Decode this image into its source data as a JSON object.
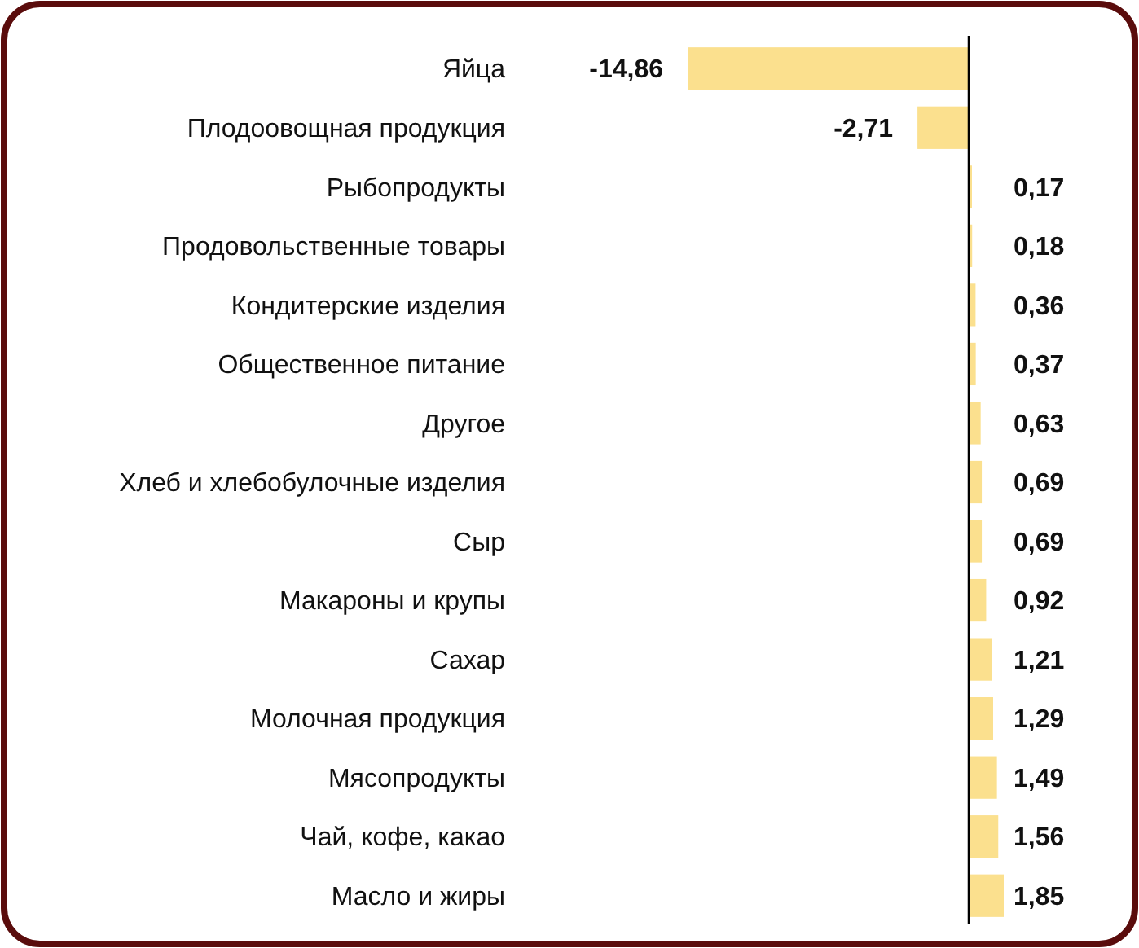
{
  "chart_data": {
    "type": "bar",
    "orientation": "horizontal",
    "categories": [
      "Яйца",
      "Плодоовощная продукция",
      "Рыбопродукты",
      "Продовольственные товары",
      "Кондитерские изделия",
      "Общественное питание",
      "Другое",
      "Хлеб и хлебобулочные изделия",
      "Сыр",
      "Макароны и крупы",
      "Сахар",
      "Молочная продукция",
      "Мясопродукты",
      "Чай, кофе, какао",
      "Масло и жиры"
    ],
    "values": [
      -14.86,
      -2.71,
      0.17,
      0.18,
      0.36,
      0.37,
      0.63,
      0.69,
      0.69,
      0.92,
      1.21,
      1.29,
      1.49,
      1.56,
      1.85
    ],
    "value_labels": [
      "-14,86",
      "-2,71",
      "0,17",
      "0,18",
      "0,36",
      "0,37",
      "0,63",
      "0,69",
      "0,69",
      "0,92",
      "1,21",
      "1,29",
      "1,49",
      "1,56",
      "1,85"
    ],
    "color": "#fbe08e",
    "tick_labels": "y"
  }
}
